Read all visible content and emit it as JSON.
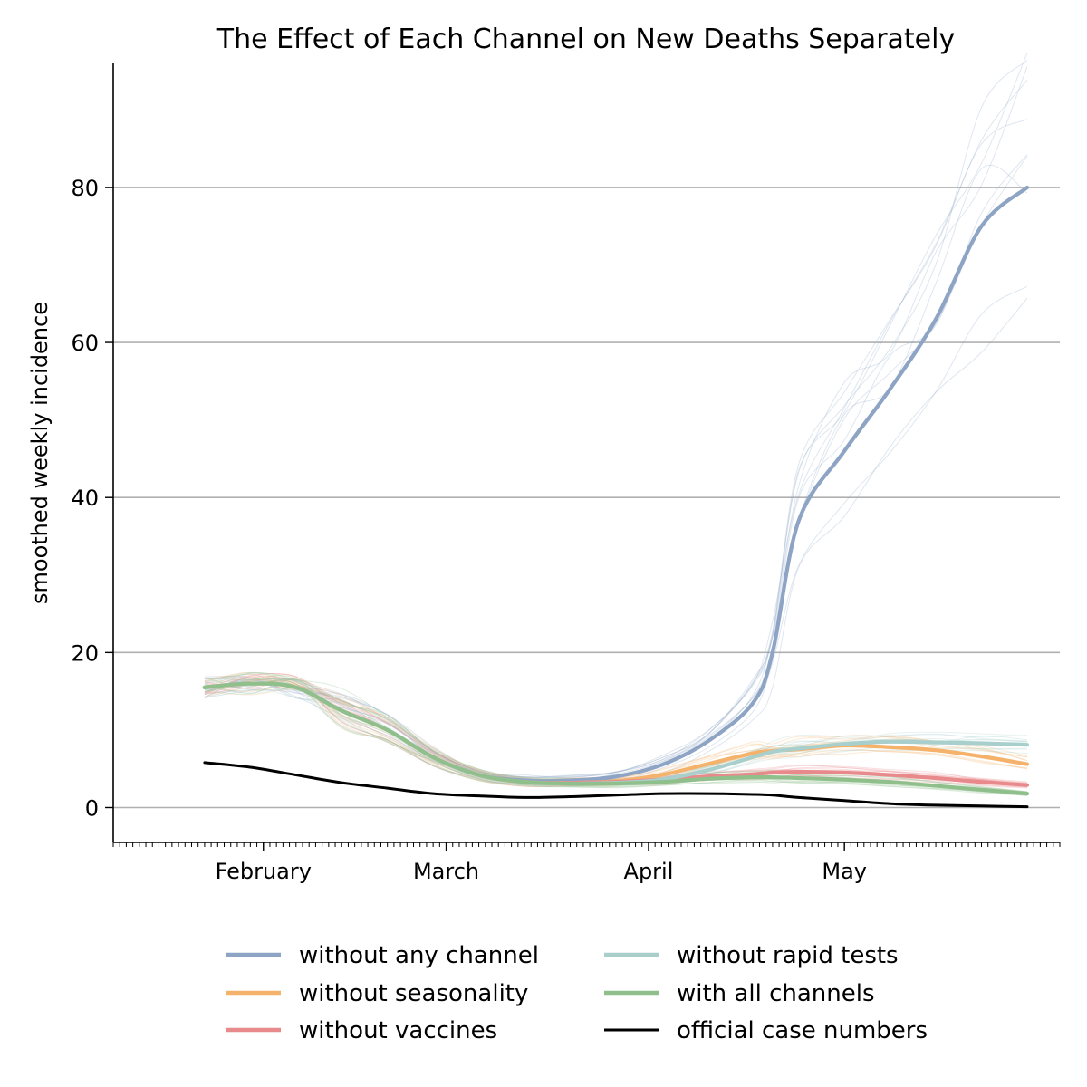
{
  "chart_data": {
    "type": "line",
    "title": "The Effect of Each Channel on New Deaths Separately",
    "xlabel": "",
    "ylabel": "smoothed weekly incidence",
    "x_tick_labels": [
      "February",
      "March",
      "April",
      "May"
    ],
    "y_ticks": [
      0,
      20,
      40,
      60,
      80
    ],
    "ylim": [
      -4.5,
      96
    ],
    "grid": "horizontal",
    "legend_position": "bottom",
    "x": [
      "01-23",
      "01-30",
      "02-06",
      "02-13",
      "02-20",
      "02-27",
      "03-06",
      "03-13",
      "03-20",
      "03-27",
      "04-03",
      "04-10",
      "04-17",
      "04-20",
      "04-24",
      "05-01",
      "05-08",
      "05-15",
      "05-22",
      "05-29"
    ],
    "series": [
      {
        "name": "without any channel",
        "color": "#8da4c4",
        "values": [
          15.5,
          16,
          15.5,
          12.5,
          10,
          6.5,
          4.2,
          3.5,
          3.5,
          4,
          5.5,
          8.5,
          13.5,
          20,
          37,
          46,
          54,
          63,
          75,
          80
        ]
      },
      {
        "name": "without seasonality",
        "color": "#f5b26b",
        "values": [
          15.5,
          16,
          15.5,
          12.5,
          10,
          6.5,
          4.2,
          3.3,
          3.2,
          3.4,
          4.2,
          5.6,
          7,
          7.3,
          7.5,
          8,
          7.8,
          7.4,
          6.6,
          5.6
        ]
      },
      {
        "name": "without vaccines",
        "color": "#e8898c",
        "values": [
          15.5,
          16,
          15.5,
          12.5,
          10,
          6.5,
          4.2,
          3.3,
          3.2,
          3.3,
          3.6,
          4,
          4.3,
          4.5,
          4.6,
          4.5,
          4.2,
          3.8,
          3.3,
          2.9
        ]
      },
      {
        "name": "without rapid tests",
        "color": "#a8cfcc",
        "values": [
          15.5,
          16,
          15.5,
          12.5,
          10,
          6.5,
          4.2,
          3.3,
          3.1,
          3.2,
          3.6,
          4.8,
          6.5,
          7.2,
          7.6,
          8.2,
          8.5,
          8.4,
          8.3,
          8.1
        ]
      },
      {
        "name": "with all channels",
        "color": "#8fc08c",
        "values": [
          15.5,
          16,
          15.5,
          12.5,
          10,
          6.5,
          4.2,
          3.3,
          3.1,
          3.1,
          3.3,
          3.7,
          3.9,
          3.9,
          3.8,
          3.6,
          3.3,
          2.8,
          2.3,
          1.8
        ]
      },
      {
        "name": "official case numbers",
        "color": "#000000",
        "values": [
          5.8,
          5.2,
          4.2,
          3.2,
          2.5,
          1.8,
          1.5,
          1.3,
          1.4,
          1.6,
          1.8,
          1.8,
          1.7,
          1.6,
          1.3,
          0.9,
          0.5,
          0.3,
          0.2,
          0.1
        ]
      }
    ]
  }
}
